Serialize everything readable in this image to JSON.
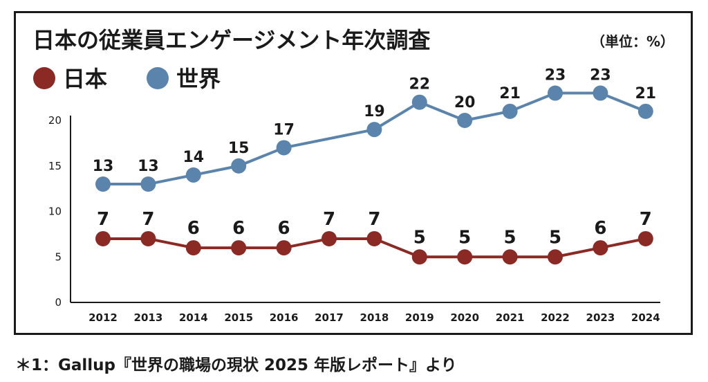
{
  "chart_data": {
    "type": "line",
    "title": "日本の従業員エンゲージメント年次調査",
    "unit": "（単位：%）",
    "categories": [
      "2012",
      "2013",
      "2014",
      "2015",
      "2016",
      "2017",
      "2018",
      "2019",
      "2020",
      "2021",
      "2022",
      "2023",
      "2024"
    ],
    "series": [
      {
        "name": "日本",
        "color": "#8b2a24",
        "values": [
          7,
          7,
          6,
          6,
          6,
          7,
          7,
          5,
          5,
          5,
          5,
          6,
          7
        ]
      },
      {
        "name": "世界",
        "color": "#5b84ad",
        "values": [
          13,
          13,
          14,
          15,
          17,
          null,
          19,
          22,
          20,
          21,
          23,
          23,
          21
        ]
      }
    ],
    "yticks": [
      "0",
      "5",
      "10",
      "15",
      "20"
    ],
    "ylim": [
      0,
      20
    ],
    "xlabel": "",
    "ylabel": ""
  },
  "footnote": "＊1：Gallup『世界の職場の現状 2025 年版レポート』より",
  "colors": {
    "axis": "#1a1a1a",
    "text": "#1a1a1a",
    "frame": "#1a1a1a"
  }
}
